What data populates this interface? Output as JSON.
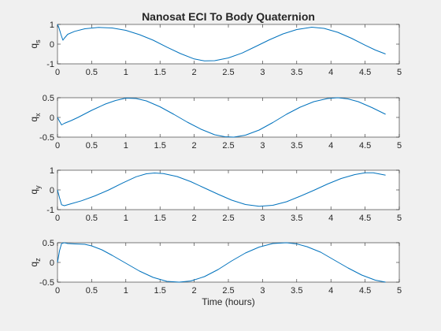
{
  "chart_data": {
    "type": "line",
    "title": "Nanosat ECI To Body Quaternion",
    "xlabel": "Time (hours)",
    "line_color": "#0072bd",
    "axes_color": "#262626",
    "background": "#f0f0f0",
    "plot_background": "#ffffff",
    "grid": false,
    "xlim": [
      0,
      5
    ],
    "xticks": [
      0,
      0.5,
      1,
      1.5,
      2,
      2.5,
      3,
      3.5,
      4,
      4.5,
      5
    ],
    "xtick_labels": [
      "0",
      "0.5",
      "1",
      "1.5",
      "2",
      "2.5",
      "3",
      "3.5",
      "4",
      "4.5",
      "5"
    ],
    "subplots": [
      {
        "ylabel_main": "q",
        "ylabel_sub": "s",
        "ylim": [
          -1,
          1
        ],
        "yticks": [
          -1,
          0,
          1
        ],
        "ytick_labels": [
          "-1",
          "0",
          "1"
        ],
        "x": [
          0,
          0.02,
          0.05,
          0.08,
          0.1,
          0.15,
          0.25,
          0.4,
          0.6,
          0.8,
          1.0,
          1.2,
          1.4,
          1.6,
          1.8,
          2.0,
          2.15,
          2.3,
          2.5,
          2.7,
          2.9,
          3.1,
          3.3,
          3.5,
          3.72,
          3.9,
          4.1,
          4.3,
          4.5,
          4.65,
          4.8
        ],
        "y": [
          1.0,
          0.85,
          0.5,
          0.2,
          0.3,
          0.5,
          0.65,
          0.78,
          0.85,
          0.82,
          0.7,
          0.48,
          0.2,
          -0.15,
          -0.48,
          -0.75,
          -0.85,
          -0.84,
          -0.7,
          -0.45,
          -0.12,
          0.22,
          0.52,
          0.74,
          0.86,
          0.8,
          0.6,
          0.3,
          -0.05,
          -0.3,
          -0.5
        ]
      },
      {
        "ylabel_main": "q",
        "ylabel_sub": "x",
        "ylim": [
          -0.5,
          0.5
        ],
        "yticks": [
          -0.5,
          0,
          0.5
        ],
        "ytick_labels": [
          "-0.5",
          "0",
          "0.5"
        ],
        "x": [
          0,
          0.03,
          0.06,
          0.1,
          0.2,
          0.3,
          0.5,
          0.7,
          0.85,
          1.0,
          1.15,
          1.3,
          1.5,
          1.7,
          1.9,
          2.1,
          2.3,
          2.45,
          2.58,
          2.75,
          2.95,
          3.15,
          3.35,
          3.55,
          3.75,
          3.95,
          4.1,
          4.25,
          4.4,
          4.6,
          4.8
        ],
        "y": [
          0.0,
          -0.1,
          -0.19,
          -0.15,
          -0.08,
          0.0,
          0.18,
          0.34,
          0.43,
          0.49,
          0.48,
          0.42,
          0.27,
          0.08,
          -0.12,
          -0.3,
          -0.44,
          -0.49,
          -0.5,
          -0.45,
          -0.32,
          -0.13,
          0.08,
          0.26,
          0.4,
          0.48,
          0.5,
          0.47,
          0.4,
          0.25,
          0.08
        ]
      },
      {
        "ylabel_main": "q",
        "ylabel_sub": "y",
        "ylim": [
          -1,
          1
        ],
        "yticks": [
          -1,
          0,
          1
        ],
        "ytick_labels": [
          "-1",
          "0",
          "1"
        ],
        "x": [
          0,
          0.03,
          0.06,
          0.1,
          0.2,
          0.35,
          0.55,
          0.75,
          0.95,
          1.15,
          1.3,
          1.42,
          1.55,
          1.75,
          1.95,
          2.15,
          2.35,
          2.55,
          2.75,
          2.95,
          3.15,
          3.35,
          3.55,
          3.75,
          3.95,
          4.15,
          4.35,
          4.5,
          4.62,
          4.8
        ],
        "y": [
          0.0,
          -0.4,
          -0.75,
          -0.8,
          -0.7,
          -0.55,
          -0.3,
          0.0,
          0.35,
          0.67,
          0.82,
          0.86,
          0.83,
          0.68,
          0.42,
          0.1,
          -0.22,
          -0.52,
          -0.74,
          -0.83,
          -0.78,
          -0.6,
          -0.32,
          -0.02,
          0.3,
          0.58,
          0.78,
          0.87,
          0.87,
          0.75
        ]
      },
      {
        "ylabel_main": "q",
        "ylabel_sub": "z",
        "ylim": [
          -0.5,
          0.5
        ],
        "yticks": [
          -0.5,
          0,
          0.5
        ],
        "ytick_labels": [
          "-0.5",
          "0",
          "0.5"
        ],
        "x": [
          0,
          0.03,
          0.06,
          0.1,
          0.15,
          0.25,
          0.4,
          0.5,
          0.65,
          0.8,
          1.0,
          1.2,
          1.4,
          1.6,
          1.78,
          1.95,
          2.15,
          2.35,
          2.55,
          2.75,
          2.95,
          3.15,
          3.35,
          3.5,
          3.65,
          3.85,
          4.05,
          4.25,
          4.45,
          4.65,
          4.8
        ],
        "y": [
          0.0,
          0.3,
          0.48,
          0.5,
          0.48,
          0.47,
          0.46,
          0.42,
          0.32,
          0.18,
          -0.02,
          -0.22,
          -0.38,
          -0.48,
          -0.5,
          -0.47,
          -0.36,
          -0.18,
          0.04,
          0.24,
          0.39,
          0.48,
          0.5,
          0.47,
          0.4,
          0.26,
          0.06,
          -0.14,
          -0.32,
          -0.45,
          -0.5
        ]
      }
    ]
  }
}
